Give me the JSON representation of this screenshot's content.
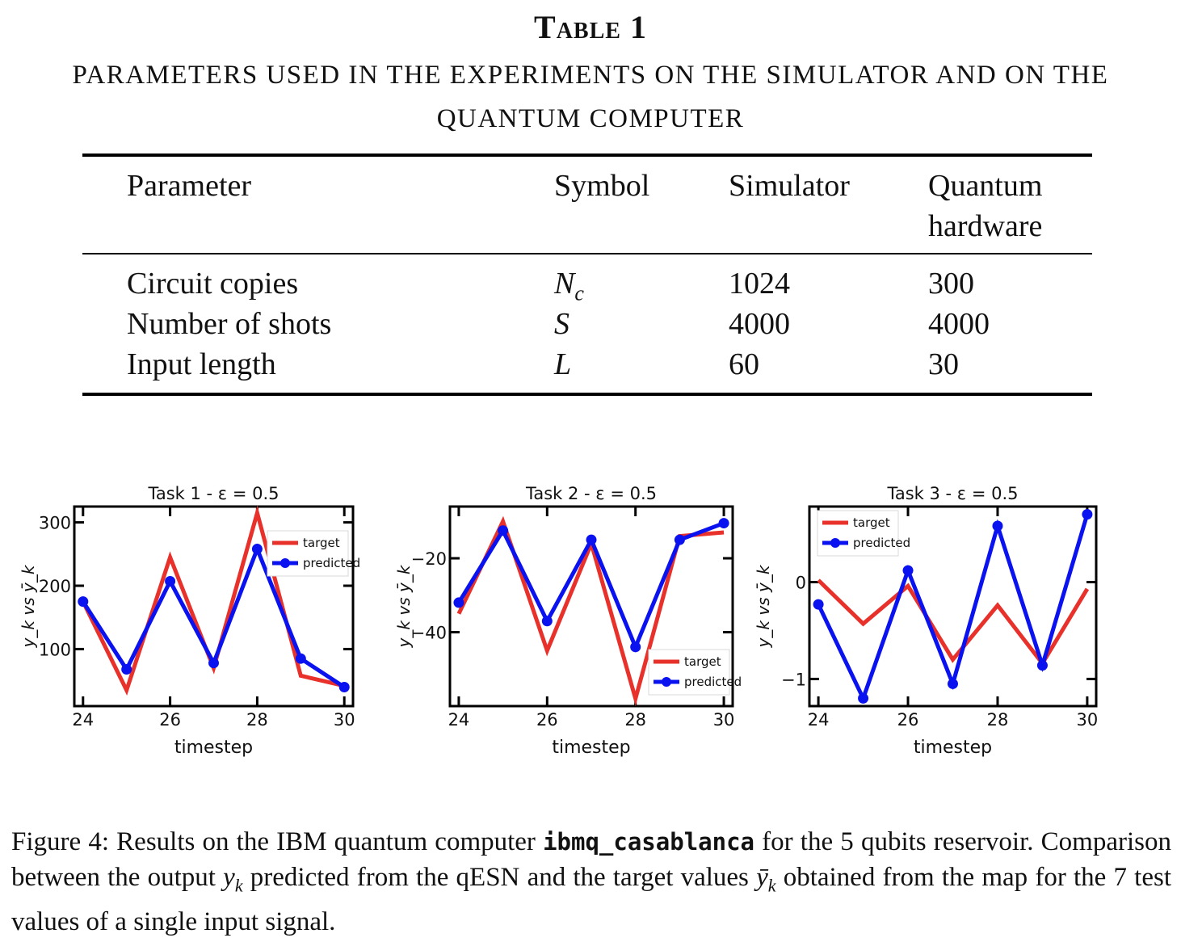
{
  "table": {
    "title": "Table 1",
    "caption": "PARAMETERS USED IN THE EXPERIMENTS ON THE SIMULATOR AND ON THE QUANTUM COMPUTER",
    "headers": [
      "Parameter",
      "Symbol",
      "Simulator",
      "Quantum",
      "hardware"
    ],
    "rows": [
      [
        "Circuit copies",
        "N",
        "c",
        "1024",
        "300"
      ],
      [
        "Number of shots",
        "S",
        "",
        "4000",
        "4000"
      ],
      [
        "Input length",
        "L",
        "",
        "60",
        "30"
      ]
    ]
  },
  "chart_data": [
    {
      "type": "line",
      "title": "Task 1 - ε = 0.5",
      "xlabel": "timestep",
      "ylabel": "y_k vs ȳ_k",
      "x": [
        24,
        25,
        26,
        27,
        28,
        29,
        30
      ],
      "xticks": [
        24,
        26,
        28,
        30
      ],
      "yticks": [
        100,
        200,
        300
      ],
      "xlim": [
        23.8,
        30.2
      ],
      "ylim": [
        10,
        325
      ],
      "legend_position": "upper-right",
      "series": [
        {
          "name": "target",
          "color": "#e8312a",
          "marker": false,
          "values": [
            175,
            35,
            245,
            70,
            315,
            58,
            42
          ]
        },
        {
          "name": "predicted",
          "color": "#0a12f0",
          "marker": true,
          "values": [
            175,
            68,
            207,
            78,
            258,
            85,
            40
          ]
        }
      ]
    },
    {
      "type": "line",
      "title": "Task 2 - ε = 0.5",
      "xlabel": "timestep",
      "ylabel": "y_k vs ȳ_k",
      "x": [
        24,
        25,
        26,
        27,
        28,
        29,
        30
      ],
      "xticks": [
        24,
        26,
        28,
        30
      ],
      "yticks": [
        -20,
        -40
      ],
      "xlim": [
        23.8,
        30.2
      ],
      "ylim": [
        -60,
        -6
      ],
      "legend_position": "lower-right",
      "series": [
        {
          "name": "target",
          "color": "#e8312a",
          "marker": false,
          "values": [
            -35,
            -10,
            -45,
            -16,
            -58,
            -14,
            -13
          ]
        },
        {
          "name": "predicted",
          "color": "#0a12f0",
          "marker": true,
          "values": [
            -32,
            -12.5,
            -37,
            -15,
            -44,
            -15,
            -10.5
          ]
        }
      ]
    },
    {
      "type": "line",
      "title": "Task 3 - ε = 0.5",
      "xlabel": "timestep",
      "ylabel": "y_k vs ȳ_k",
      "x": [
        24,
        25,
        26,
        27,
        28,
        29,
        30
      ],
      "xticks": [
        24,
        26,
        28,
        30
      ],
      "yticks": [
        0,
        -1
      ],
      "xlim": [
        23.8,
        30.2
      ],
      "ylim": [
        -1.28,
        0.78
      ],
      "legend_position": "upper-left",
      "series": [
        {
          "name": "target",
          "color": "#e8312a",
          "marker": false,
          "values": [
            0.02,
            -0.43,
            -0.04,
            -0.8,
            -0.24,
            -0.84,
            -0.07
          ]
        },
        {
          "name": "predicted",
          "color": "#0a12f0",
          "marker": true,
          "values": [
            -0.23,
            -1.2,
            0.12,
            -1.05,
            0.58,
            -0.86,
            0.7
          ]
        }
      ]
    }
  ],
  "figure_caption": {
    "lead": "Figure 4:",
    "part1": " Results on the IBM quantum computer ",
    "device": "ibmq_casablanca",
    "part2": " for the 5 qubits reservoir. Comparison between the output ",
    "yk": "y",
    "k1": "k",
    "part3": " predicted from the qESN and the target values ",
    "ybar": "ȳ",
    "k2": "k",
    "part4": " obtained from the map for the 7 test values of a single input signal."
  }
}
